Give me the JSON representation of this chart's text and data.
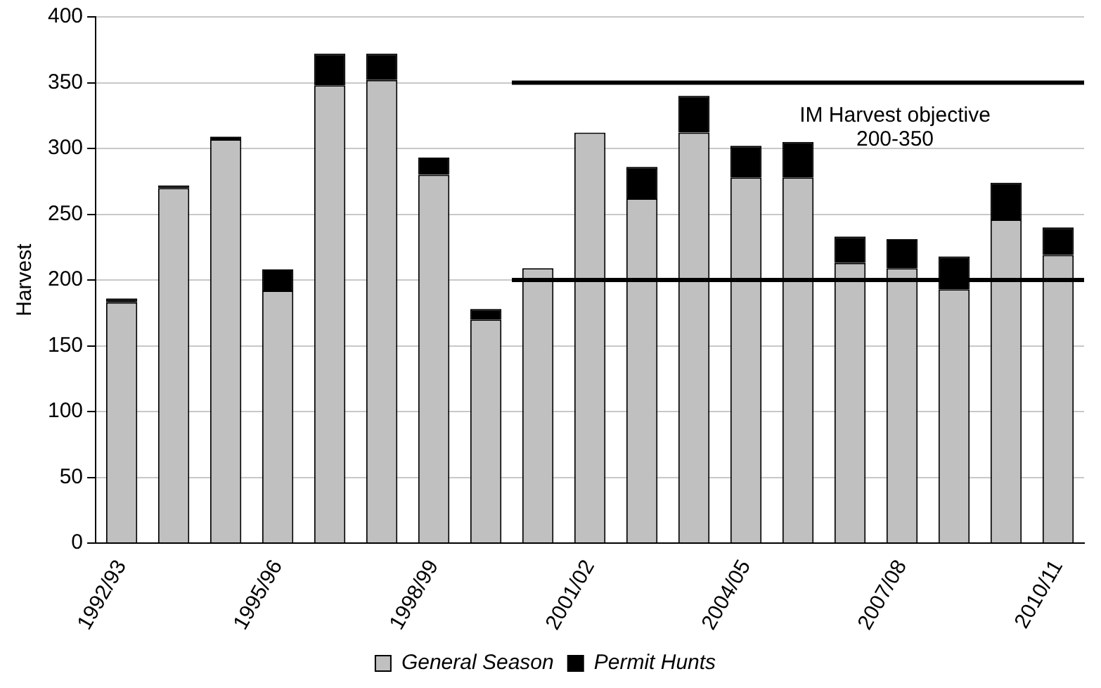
{
  "chart_data": {
    "type": "bar",
    "stacked": true,
    "ylabel": "Harvest",
    "categories": [
      "1992/93",
      null,
      null,
      "1995/96",
      null,
      null,
      "1998/99",
      null,
      null,
      "2001/02",
      null,
      null,
      "2004/05",
      null,
      null,
      "2007/08",
      null,
      null,
      "2010/11"
    ],
    "series": [
      {
        "name": "General Season",
        "color": "#c0c0c0",
        "values": [
          183,
          270,
          307,
          192,
          348,
          352,
          280,
          170,
          209,
          312,
          262,
          312,
          278,
          278,
          213,
          209,
          193,
          246,
          219
        ]
      },
      {
        "name": "Permit Hunts",
        "color": "#000000",
        "values": [
          3,
          2,
          2,
          16,
          24,
          20,
          13,
          8,
          0,
          0,
          24,
          28,
          24,
          27,
          20,
          22,
          25,
          28,
          21
        ]
      }
    ],
    "ylim": [
      0,
      400
    ],
    "yticks": [
      0,
      50,
      100,
      150,
      200,
      250,
      300,
      350,
      400
    ],
    "grid": "y",
    "legend": "bottom",
    "ref_lines": [
      {
        "axis": "y",
        "value": 350,
        "color": "#000000"
      },
      {
        "axis": "y",
        "value": 200,
        "color": "#000000"
      }
    ],
    "annotations": [
      "IM Harvest objective\n200-350"
    ]
  }
}
